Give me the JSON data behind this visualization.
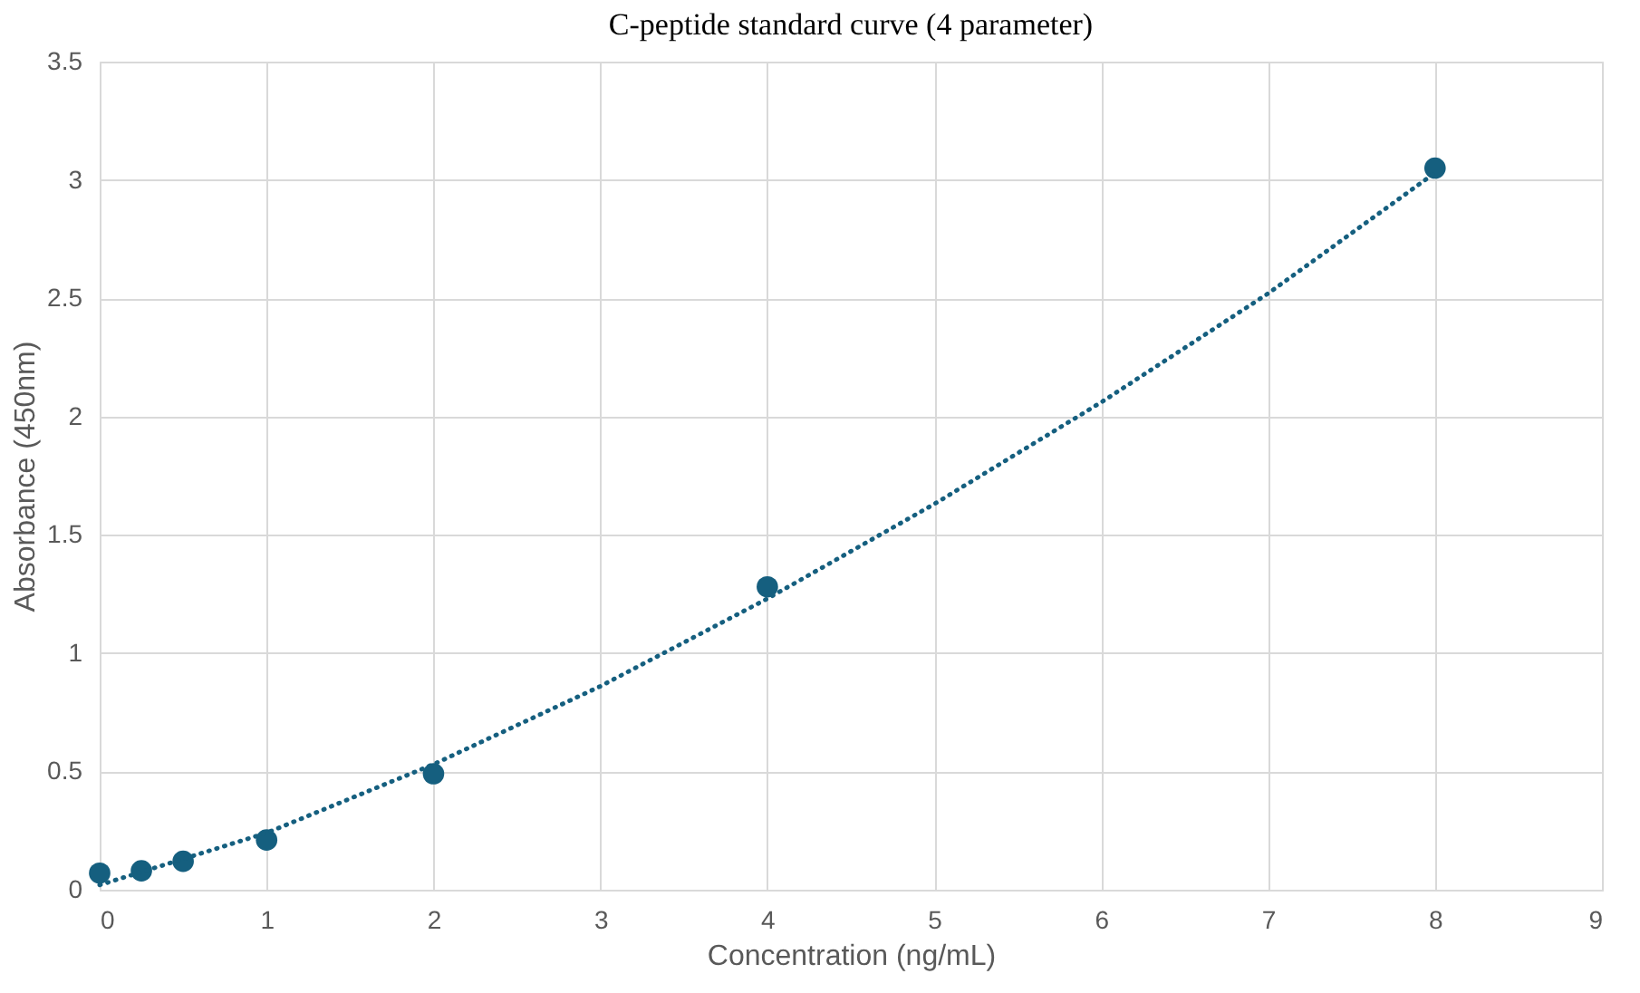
{
  "chart_data": {
    "type": "scatter",
    "title": "C-peptide standard curve (4 parameter)",
    "xlabel": "Concentration (ng/mL)",
    "ylabel": "Absorbance (450nm)",
    "xlim": [
      0,
      9
    ],
    "xticks": [
      0,
      1,
      2,
      3,
      4,
      5,
      6,
      7,
      8,
      9
    ],
    "ylim": [
      0,
      3.5
    ],
    "yticks": [
      0,
      0.5,
      1,
      1.5,
      2,
      2.5,
      3,
      3.5
    ],
    "grid": true,
    "series": [
      {
        "color": "#155f7f",
        "marker": "circle",
        "x": [
          0,
          0.25,
          0.5,
          1,
          2,
          4,
          8
        ],
        "values": [
          0.07,
          0.08,
          0.12,
          0.21,
          0.49,
          1.28,
          3.05
        ]
      },
      {
        "type": "line",
        "color": "#155f7f",
        "line_style": "dotted",
        "marker": "none",
        "x": [
          0,
          1,
          2,
          3,
          4,
          5,
          6,
          7,
          8
        ],
        "values": [
          0.02,
          0.24,
          0.53,
          0.86,
          1.23,
          1.63,
          2.06,
          2.52,
          3.03
        ]
      }
    ]
  }
}
